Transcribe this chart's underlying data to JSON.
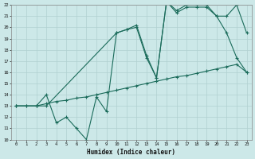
{
  "xlabel": "Humidex (Indice chaleur)",
  "xlim": [
    -0.5,
    23.5
  ],
  "ylim": [
    10,
    22
  ],
  "xticks": [
    0,
    1,
    2,
    3,
    4,
    5,
    6,
    7,
    8,
    9,
    10,
    11,
    12,
    13,
    14,
    15,
    16,
    17,
    18,
    19,
    20,
    21,
    22,
    23
  ],
  "yticks": [
    10,
    11,
    12,
    13,
    14,
    15,
    16,
    17,
    18,
    19,
    20,
    21,
    22
  ],
  "bg_color": "#cce8e8",
  "line_color": "#1a6b5a",
  "grid_color": "#b0d0d0",
  "line1_x": [
    0,
    1,
    2,
    3,
    4,
    5,
    6,
    7,
    8,
    9,
    10,
    11,
    12,
    13,
    14,
    15,
    16,
    17,
    18,
    19,
    20,
    21,
    22,
    23
  ],
  "line1_y": [
    13,
    13,
    13,
    13.2,
    13.4,
    13.5,
    13.7,
    13.8,
    14.0,
    14.2,
    14.4,
    14.6,
    14.8,
    15.0,
    15.2,
    15.4,
    15.6,
    15.7,
    15.9,
    16.1,
    16.3,
    16.5,
    16.7,
    16.0
  ],
  "line2_x": [
    0,
    1,
    2,
    3,
    4,
    5,
    6,
    7,
    8,
    9,
    10,
    11,
    12,
    13,
    14,
    15,
    16,
    17,
    18,
    19,
    20,
    21,
    22,
    23
  ],
  "line2_y": [
    13,
    13,
    13,
    14,
    11.5,
    12,
    11,
    10,
    13.8,
    12.5,
    19.5,
    19.8,
    20.0,
    17.3,
    15.5,
    22.3,
    21.5,
    22.0,
    22.0,
    22.0,
    21.0,
    21.0,
    22.0,
    19.5
  ],
  "line3_x": [
    0,
    2,
    3,
    10,
    11,
    12,
    13,
    14,
    15,
    16,
    17,
    18,
    19,
    20,
    21,
    22,
    23
  ],
  "line3_y": [
    13,
    13,
    13,
    19.5,
    19.8,
    20.2,
    17.5,
    15.5,
    22.3,
    21.3,
    21.8,
    21.8,
    21.8,
    21.0,
    19.5,
    17.3,
    16.0
  ]
}
